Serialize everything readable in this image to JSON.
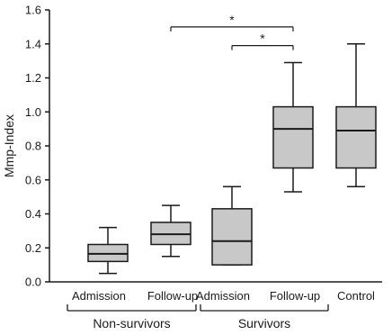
{
  "chart_data": {
    "type": "box",
    "ylabel": "Mmp-Index",
    "ylim": [
      0,
      1.6
    ],
    "yticks": [
      "0.0",
      "0.2",
      "0.4",
      "0.6",
      "0.8",
      "1.0",
      "1.2",
      "1.4",
      "1.6"
    ],
    "categories": [
      "Admission",
      "Follow-up",
      "Admission",
      "Follow-up",
      "Control"
    ],
    "groups": [
      {
        "label": "Non-survivors",
        "span": [
          0,
          1
        ]
      },
      {
        "label": "Survivors",
        "span": [
          2,
          3
        ]
      }
    ],
    "boxes": [
      {
        "min": 0.05,
        "q1": 0.12,
        "median": 0.165,
        "q3": 0.22,
        "max": 0.32
      },
      {
        "min": 0.15,
        "q1": 0.22,
        "median": 0.28,
        "q3": 0.35,
        "max": 0.45
      },
      {
        "min": 0.1,
        "q1": 0.1,
        "median": 0.24,
        "q3": 0.43,
        "max": 0.56
      },
      {
        "min": 0.53,
        "q1": 0.67,
        "median": 0.9,
        "q3": 1.03,
        "max": 1.29
      },
      {
        "min": 0.56,
        "q1": 0.67,
        "median": 0.89,
        "q3": 1.03,
        "max": 1.4
      }
    ],
    "significance": [
      {
        "from": 1,
        "to": 3,
        "label": "*",
        "y": 1.5
      },
      {
        "from": 2,
        "to": 3,
        "label": "*",
        "y": 1.39
      }
    ],
    "box_fill": "#c8c8c8",
    "line_color": "#1a1a1a"
  }
}
